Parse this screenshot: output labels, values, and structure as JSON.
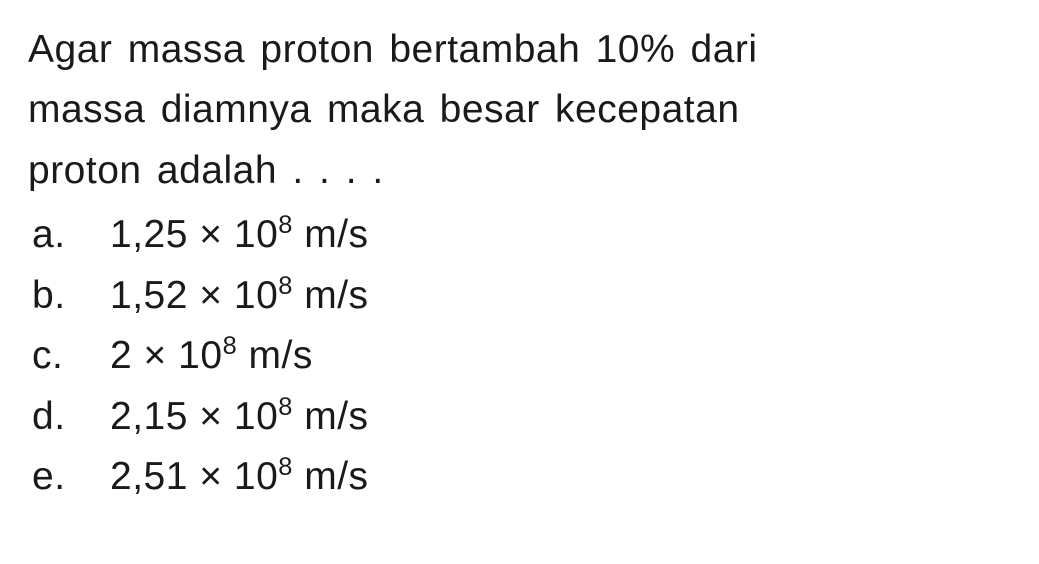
{
  "question": {
    "stem_line1": "Agar massa proton bertambah 10% dari",
    "stem_line2": "massa diamnya maka besar kecepatan",
    "stem_line3": "proton adalah . . . ."
  },
  "options": [
    {
      "label": "a.",
      "coeff": "1,25",
      "times": "×",
      "base": "10",
      "exp": "8",
      "unit": "m/s"
    },
    {
      "label": "b.",
      "coeff": "1,52",
      "times": "×",
      "base": "10",
      "exp": "8",
      "unit": "m/s"
    },
    {
      "label": "c.",
      "coeff": "2",
      "times": "×",
      "base": "10",
      "exp": "8",
      "unit": "m/s"
    },
    {
      "label": "d.",
      "coeff": "2,15",
      "times": "×",
      "base": "10",
      "exp": "8",
      "unit": "m/s"
    },
    {
      "label": "e.",
      "coeff": "2,51",
      "times": "×",
      "base": "10",
      "exp": "8",
      "unit": "m/s"
    }
  ],
  "style": {
    "text_color": "#1a1a1a",
    "background_color": "#ffffff",
    "font_size_pt": 29,
    "line_height": 1.55
  }
}
